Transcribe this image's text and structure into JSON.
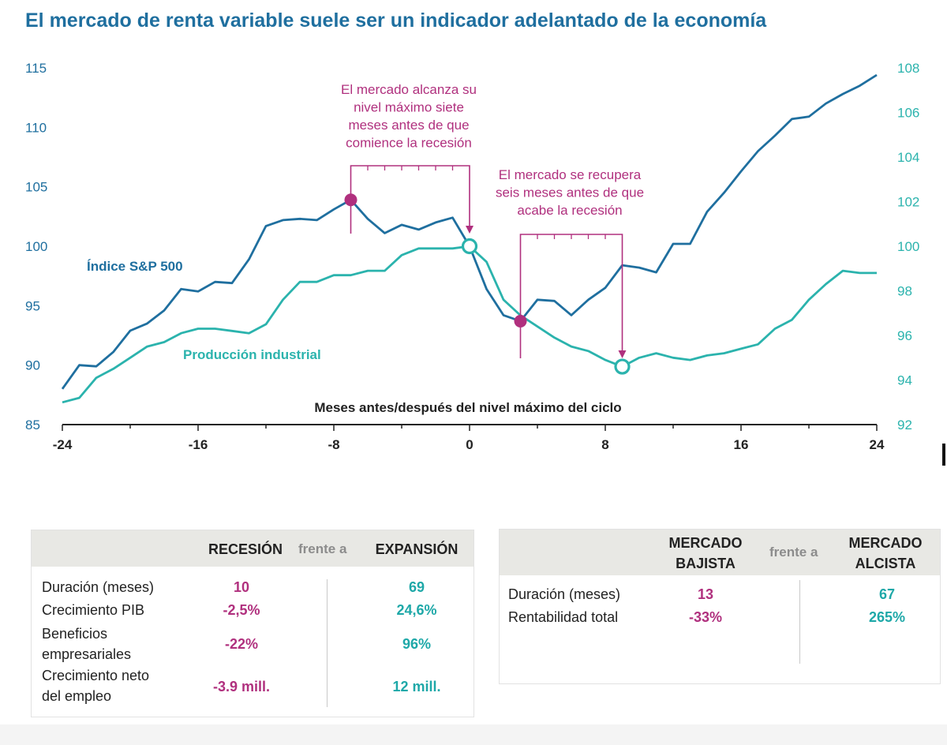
{
  "title": "El mercado de renta variable suele ser un indicador adelantado de la economía",
  "colors": {
    "sp500": "#1f6f9f",
    "industrial": "#2bb3ad",
    "accent": "#b0307e",
    "axis": "#222222"
  },
  "chart_data": {
    "type": "line",
    "xlabel": "Meses antes/después del nivel máximo del ciclo",
    "xlim": [
      -24,
      24
    ],
    "x_ticks": [
      -24,
      -16,
      -8,
      0,
      8,
      16,
      24
    ],
    "y_left": {
      "lim": [
        85,
        115
      ],
      "ticks": [
        85,
        90,
        95,
        100,
        105,
        110,
        115
      ]
    },
    "y_right": {
      "lim": [
        92,
        108
      ],
      "ticks": [
        92,
        94,
        96,
        98,
        100,
        102,
        104,
        106,
        108
      ]
    },
    "series": [
      {
        "name": "Índice S&P 500",
        "axis": "left",
        "x": [
          -24,
          -23,
          -22,
          -21,
          -20,
          -19,
          -18,
          -17,
          -16,
          -15,
          -14,
          -13,
          -12,
          -11,
          -10,
          -9,
          -8,
          -7,
          -6,
          -5,
          -4,
          -3,
          -2,
          -1,
          0,
          1,
          2,
          3,
          4,
          5,
          6,
          7,
          8,
          9,
          10,
          11,
          12,
          13,
          14,
          15,
          16,
          17,
          18,
          19,
          20,
          21,
          22,
          23,
          24
        ],
        "values": [
          88.0,
          90.0,
          89.9,
          91.1,
          92.9,
          93.5,
          94.6,
          96.4,
          96.2,
          97.0,
          96.9,
          98.9,
          101.7,
          102.2,
          102.3,
          102.2,
          103.1,
          103.9,
          102.3,
          101.1,
          101.8,
          101.4,
          102.0,
          102.4,
          100.0,
          96.4,
          94.2,
          93.7,
          95.5,
          95.4,
          94.2,
          95.5,
          96.5,
          98.4,
          98.2,
          97.8,
          100.2,
          100.2,
          102.9,
          104.5,
          106.3,
          108.0,
          109.3,
          110.7,
          110.9,
          112.0,
          112.8,
          113.5,
          114.4
        ]
      },
      {
        "name": "Producción industrial",
        "axis": "right",
        "x": [
          -24,
          -23,
          -22,
          -21,
          -20,
          -19,
          -18,
          -17,
          -16,
          -15,
          -14,
          -13,
          -12,
          -11,
          -10,
          -9,
          -8,
          -7,
          -6,
          -5,
          -4,
          -3,
          -2,
          -1,
          0,
          1,
          2,
          3,
          4,
          5,
          6,
          7,
          8,
          9,
          10,
          11,
          12,
          13,
          14,
          15,
          16,
          17,
          18,
          19,
          20,
          21,
          22,
          23,
          24
        ],
        "values": [
          93.0,
          93.2,
          94.1,
          94.5,
          95.0,
          95.5,
          95.7,
          96.1,
          96.3,
          96.3,
          96.2,
          96.1,
          96.5,
          97.6,
          98.4,
          98.4,
          98.7,
          98.7,
          98.9,
          98.9,
          99.6,
          99.9,
          99.9,
          99.9,
          100.0,
          99.3,
          97.6,
          96.9,
          96.4,
          95.9,
          95.5,
          95.3,
          94.9,
          94.6,
          95.0,
          95.2,
          95.0,
          94.9,
          95.1,
          95.2,
          95.4,
          95.6,
          96.3,
          96.7,
          97.6,
          98.3,
          98.9,
          98.8,
          98.8
        ]
      }
    ],
    "series_labels": {
      "sp500": "Índice S&P 500",
      "industrial": "Producción industrial"
    },
    "markers": [
      {
        "series": "Índice S&P 500",
        "x": -7,
        "y": 103.9,
        "style": "filled"
      },
      {
        "series": "Índice S&P 500",
        "x": 3,
        "y": 93.7,
        "style": "filled"
      },
      {
        "series": "Producción industrial",
        "x": 0,
        "y": 100.0,
        "style": "ring"
      },
      {
        "series": "Producción industrial",
        "x": 9,
        "y": 94.6,
        "style": "ring"
      }
    ],
    "annotations": [
      {
        "text": [
          "El mercado alcanza su",
          "nivel máximo siete",
          "meses antes de que",
          "comience la recesión"
        ],
        "bracket_from": -7,
        "bracket_to": 0
      },
      {
        "text": [
          "El mercado se recupera",
          "seis meses antes de que",
          "acabe la recesión"
        ],
        "bracket_from": 3,
        "bracket_to": 9
      }
    ]
  },
  "table_recession": {
    "header": {
      "left": "RECESIÓN",
      "vs": "frente a",
      "right": "EXPANSIÓN"
    },
    "rows": [
      {
        "label": "Duración (meses)",
        "left": "10",
        "right": "69"
      },
      {
        "label": "Crecimiento PIB",
        "left": "-2,5%",
        "right": "24,6%"
      },
      {
        "label_lines": [
          "Beneficios",
          "empresariales"
        ],
        "left": "-22%",
        "right": "96%"
      },
      {
        "label_lines": [
          "Crecimiento neto",
          "del empleo"
        ],
        "left": "-3.9 mill.",
        "right": "12 mill."
      }
    ]
  },
  "table_market": {
    "header": {
      "left_lines": [
        "MERCADO",
        "BAJISTA"
      ],
      "vs": "frente a",
      "right_lines": [
        "MERCADO",
        "ALCISTA"
      ]
    },
    "rows": [
      {
        "label": "Duración (meses)",
        "left": "13",
        "right": "67"
      },
      {
        "label": "Rentabilidad total",
        "left": "-33%",
        "right": "265%"
      }
    ]
  }
}
